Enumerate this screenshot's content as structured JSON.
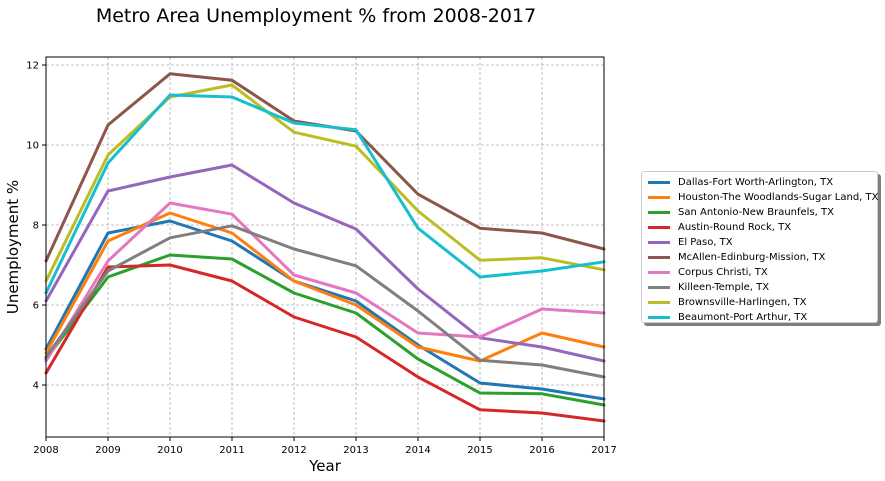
{
  "chart_data": {
    "type": "line",
    "title": "Metro Area Unemployment % from 2008-2017",
    "xlabel": "Year",
    "ylabel": "Unemployment %",
    "x": [
      2008,
      2009,
      2010,
      2011,
      2012,
      2013,
      2014,
      2015,
      2016,
      2017
    ],
    "xlim": [
      2008,
      2017
    ],
    "ylim": [
      2.7,
      12.2
    ],
    "yticks": [
      4,
      6,
      8,
      10,
      12
    ],
    "grid": true,
    "legend_position": "right",
    "series": [
      {
        "name": "Dallas-Fort Worth-Arlington, TX",
        "color": "#1f77b4",
        "values": [
          4.9,
          7.8,
          8.1,
          7.6,
          6.6,
          6.1,
          5.0,
          4.05,
          3.9,
          3.65
        ]
      },
      {
        "name": "Houston-The Woodlands-Sugar Land, TX",
        "color": "#ff7f0e",
        "values": [
          4.8,
          7.6,
          8.3,
          7.8,
          6.6,
          6.0,
          4.95,
          4.6,
          5.3,
          4.95
        ]
      },
      {
        "name": "San Antonio-New Braunfels, TX",
        "color": "#2ca02c",
        "values": [
          4.65,
          6.7,
          7.25,
          7.15,
          6.3,
          5.8,
          4.65,
          3.8,
          3.78,
          3.5
        ]
      },
      {
        "name": "Austin-Round Rock, TX",
        "color": "#d62728",
        "values": [
          4.3,
          6.95,
          7.0,
          6.6,
          5.7,
          5.2,
          4.2,
          3.38,
          3.3,
          3.1
        ]
      },
      {
        "name": "El Paso, TX",
        "color": "#9467bd",
        "values": [
          6.1,
          8.85,
          9.2,
          9.5,
          8.55,
          7.9,
          6.4,
          5.18,
          4.95,
          4.6
        ]
      },
      {
        "name": "McAllen-Edinburg-Mission, TX",
        "color": "#8c564b",
        "values": [
          7.1,
          10.5,
          11.78,
          11.62,
          10.6,
          10.35,
          8.77,
          7.92,
          7.8,
          7.4
        ]
      },
      {
        "name": "Corpus Christi, TX",
        "color": "#e377c2",
        "values": [
          4.6,
          7.1,
          8.55,
          8.27,
          6.75,
          6.3,
          5.3,
          5.2,
          5.9,
          5.8
        ]
      },
      {
        "name": "Killeen-Temple, TX",
        "color": "#7f7f7f",
        "values": [
          4.7,
          6.85,
          7.68,
          7.98,
          7.4,
          6.98,
          5.85,
          4.62,
          4.5,
          4.2
        ]
      },
      {
        "name": "Brownsville-Harlingen, TX",
        "color": "#bcbd22",
        "values": [
          6.6,
          9.75,
          11.2,
          11.5,
          10.32,
          9.97,
          8.35,
          7.12,
          7.18,
          6.88
        ]
      },
      {
        "name": "Beaumont-Port Arthur, TX",
        "color": "#17becf",
        "values": [
          6.3,
          9.55,
          11.25,
          11.2,
          10.55,
          10.38,
          7.92,
          6.7,
          6.85,
          7.08
        ]
      }
    ]
  }
}
